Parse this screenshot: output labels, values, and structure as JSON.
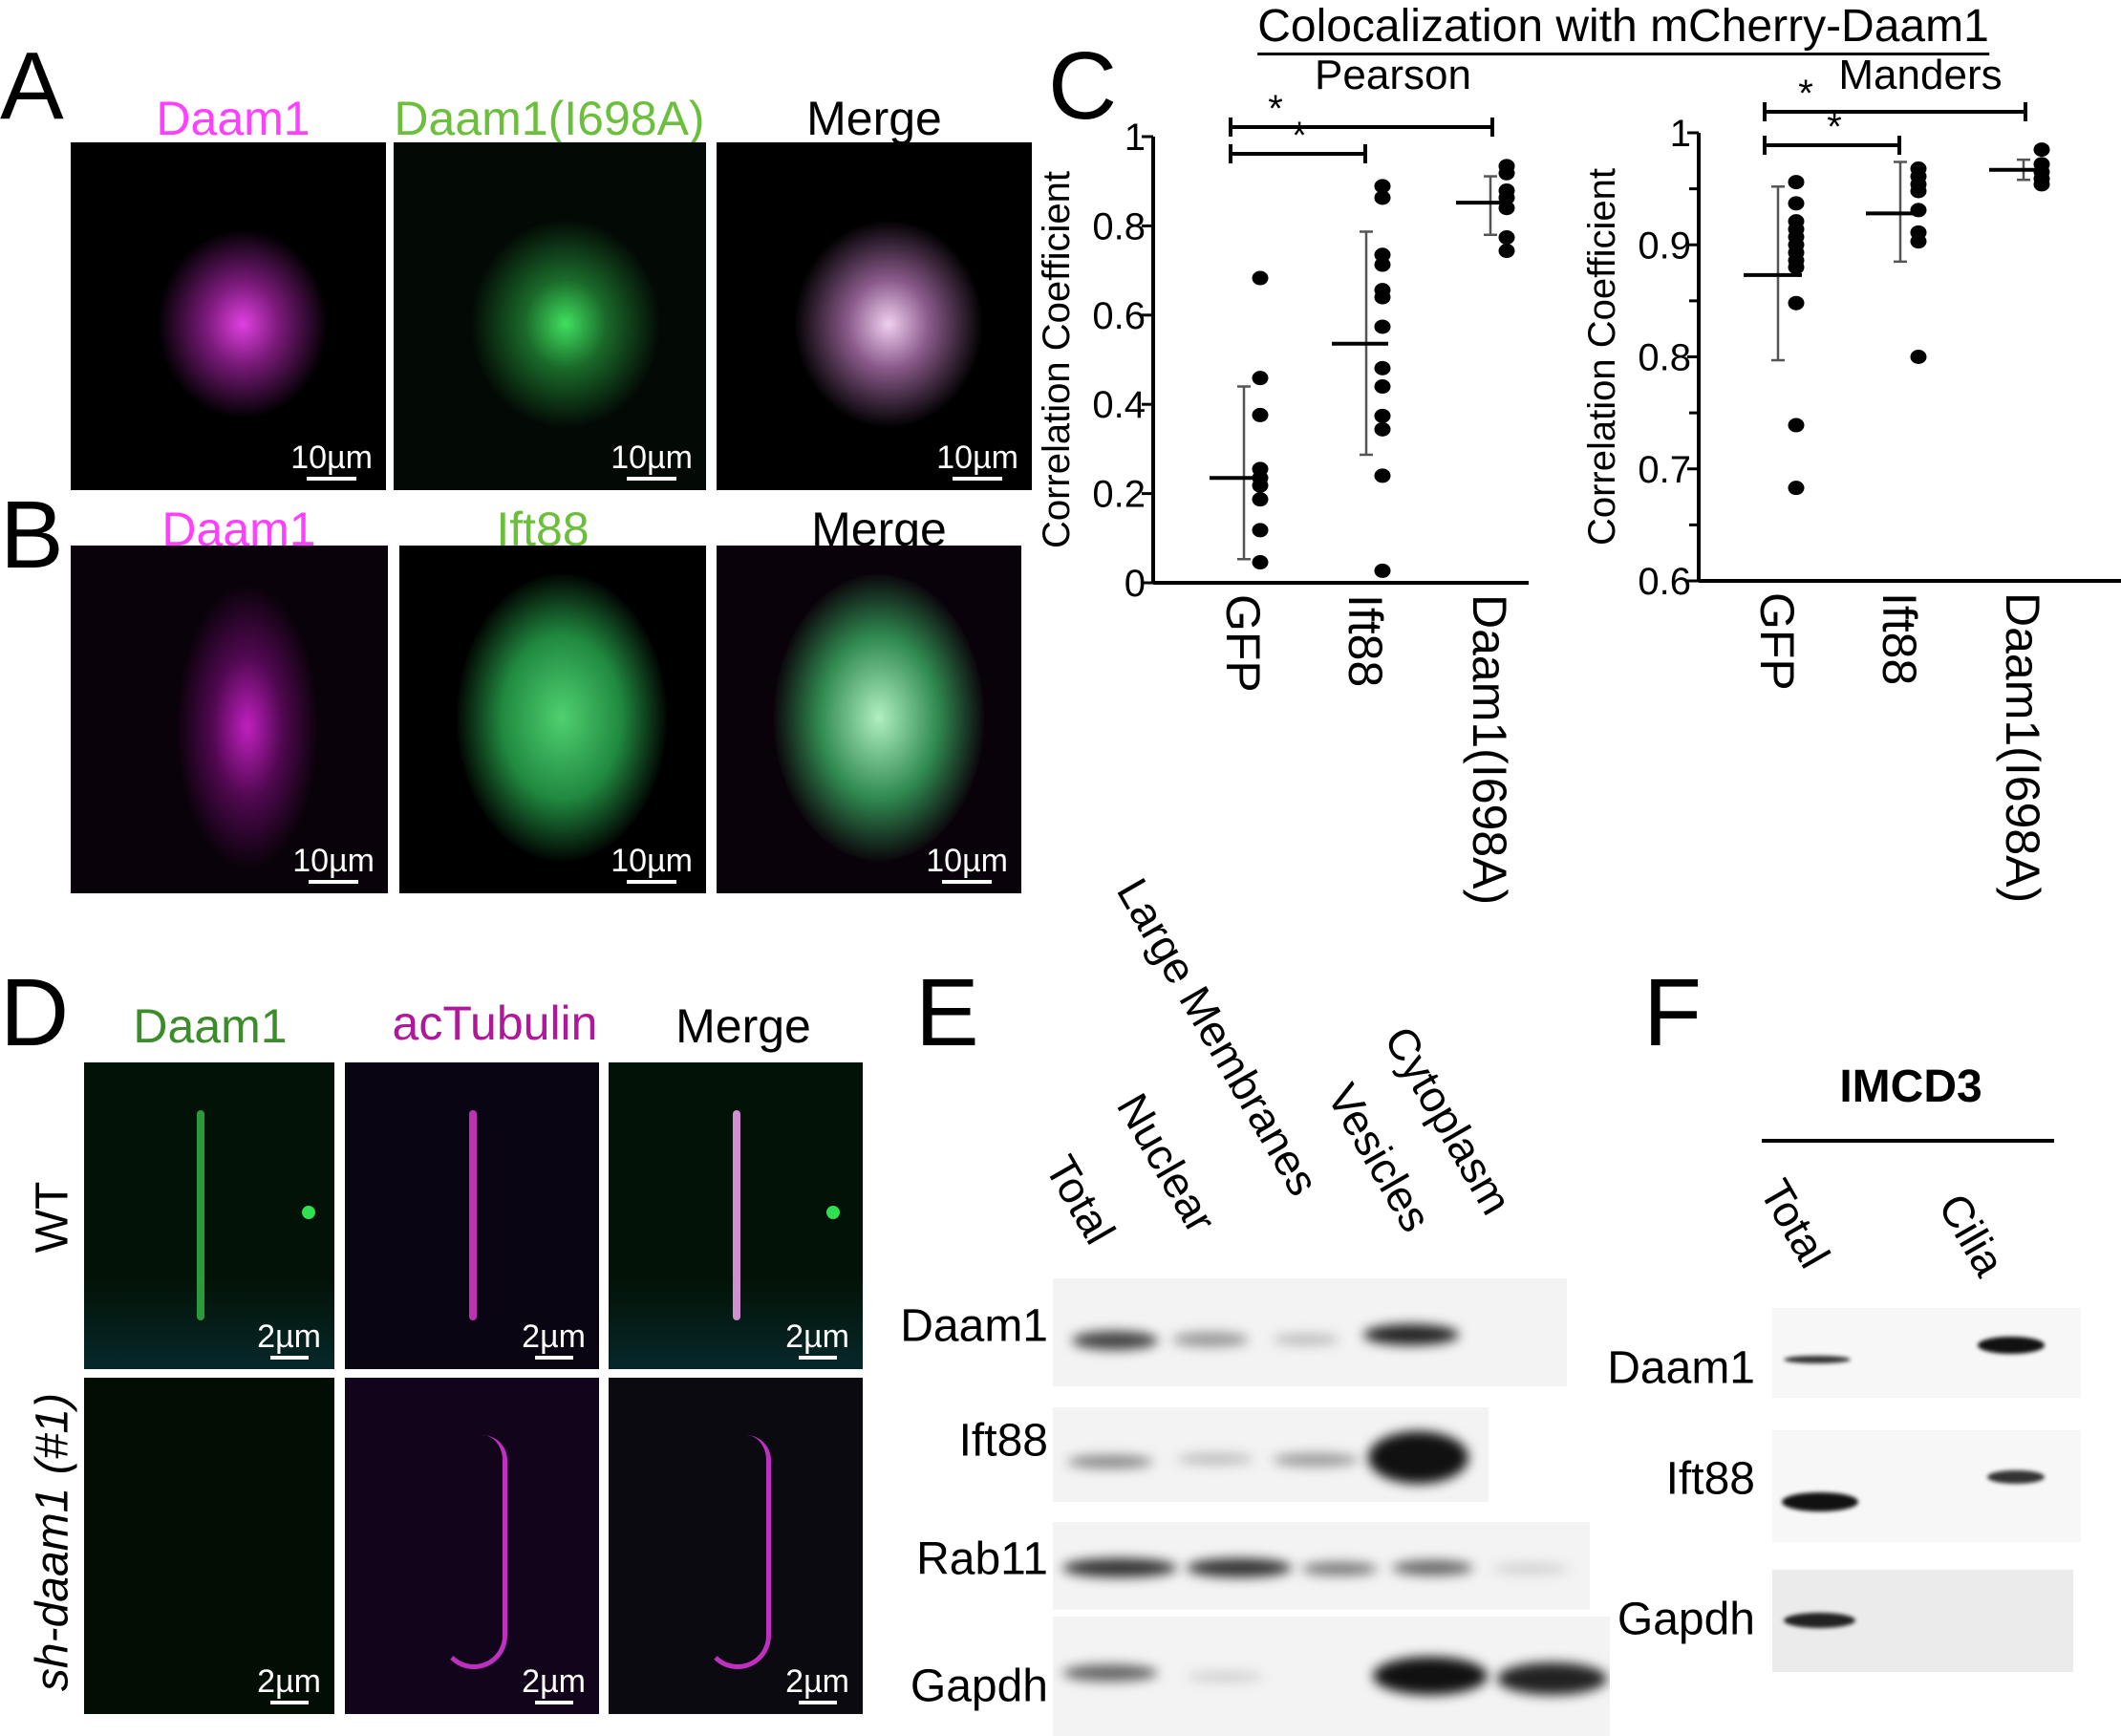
{
  "panels": {
    "A": {
      "letter": "A",
      "labels": [
        "Daam1",
        "Daam1(I698A)",
        "Merge"
      ],
      "label_colors": [
        "#ff40ff",
        "#6cbf3c",
        "#000000"
      ],
      "scale_bar": "10µm"
    },
    "B": {
      "letter": "B",
      "labels": [
        "Daam1",
        "Ift88",
        "Merge"
      ],
      "label_colors": [
        "#ff40ff",
        "#6cbf3c",
        "#000000"
      ],
      "scale_bar": "10µm"
    },
    "C": {
      "letter": "C",
      "title": "Colocalization with mCherry-Daam1"
    },
    "D": {
      "letter": "D",
      "labels": [
        "Daam1",
        "acTubulin",
        "Merge"
      ],
      "label_colors": [
        "#3c8c2c",
        "#b0189a",
        "#000000"
      ],
      "rows": [
        "WT",
        "sh-daam1 (#1)"
      ],
      "scale_bar": "2µm"
    },
    "E": {
      "letter": "E",
      "columns": [
        "Total",
        "Nuclear",
        "Large Membranes",
        "Vesicles",
        "Cytoplasm"
      ],
      "rows": [
        "Daam1",
        "Ift88",
        "Rab11",
        "Gapdh"
      ]
    },
    "F": {
      "letter": "F",
      "header": "IMCD3",
      "columns": [
        "Total",
        "Cilia"
      ],
      "rows": [
        "Daam1",
        "Ift88",
        "Gapdh"
      ]
    }
  },
  "chart_data": [
    {
      "type": "scatter",
      "title": "Pearson",
      "ylabel": "Correlation Coefficient",
      "ylim": [
        0,
        1
      ],
      "yticks": [
        "0",
        "0.2",
        "0.4",
        "0.6",
        "0.8",
        "1"
      ],
      "categories": [
        "GFP",
        "Ift88",
        "Daam1(I698A)"
      ],
      "points": [
        [
          0.683,
          0.459,
          0.376,
          0.255,
          0.235,
          0.218,
          0.187,
          0.118,
          0.046
        ],
        [
          0.889,
          0.863,
          0.735,
          0.713,
          0.656,
          0.64,
          0.574,
          0.481,
          0.44,
          0.374,
          0.344,
          0.24,
          0.027
        ],
        [
          0.934,
          0.918,
          0.879,
          0.863,
          0.84,
          0.774,
          0.744
        ]
      ],
      "mean": [
        0.235,
        0.536,
        0.852
      ],
      "error": [
        [
          0.053,
          0.44
        ],
        [
          0.287,
          0.787
        ],
        [
          0.78,
          0.911
        ]
      ],
      "significance": [
        {
          "from": "GFP",
          "to": "Ift88",
          "label": "*"
        },
        {
          "from": "GFP",
          "to": "Daam1(I698A)",
          "label": "*"
        }
      ]
    },
    {
      "type": "scatter",
      "title": "Manders",
      "ylabel": "Correlation Coefficient",
      "ylim": [
        0.6,
        1
      ],
      "yticks": [
        "0.6",
        "0.7",
        "0.8",
        "0.9",
        "1"
      ],
      "categories": [
        "GFP",
        "Ift88",
        "Daam1(I698A)"
      ],
      "points": [
        [
          0.956,
          0.937,
          0.921,
          0.914,
          0.907,
          0.9,
          0.893,
          0.886,
          0.88,
          0.848,
          0.739,
          0.683
        ],
        [
          0.968,
          0.961,
          0.954,
          0.948,
          0.931,
          0.911,
          0.903,
          0.8
        ],
        [
          0.985,
          0.972,
          0.965,
          0.959,
          0.954
        ]
      ],
      "mean": [
        0.873,
        0.928,
        0.967
      ],
      "error": [
        [
          0.797,
          0.952
        ],
        [
          0.885,
          0.974
        ],
        [
          0.958,
          0.976
        ]
      ],
      "significance": [
        {
          "from": "GFP",
          "to": "Ift88",
          "label": "*"
        },
        {
          "from": "GFP",
          "to": "Daam1(I698A)",
          "label": "*"
        }
      ]
    }
  ]
}
